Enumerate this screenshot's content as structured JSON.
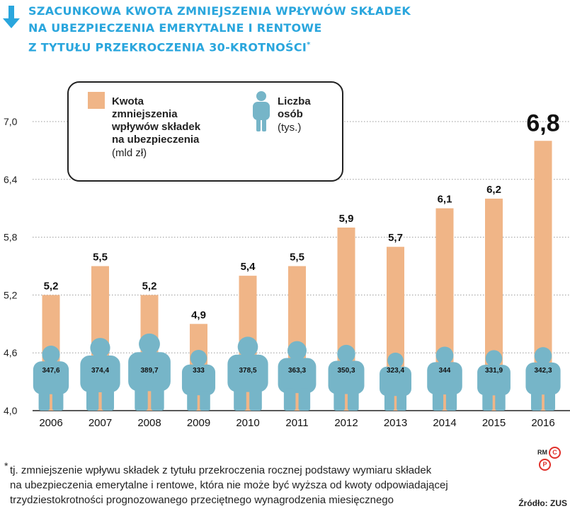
{
  "title": {
    "lines": [
      "SZACUNKOWA KWOTA ZMNIEJSZENIA WPŁYWÓW SKŁADEK",
      "NA UBEZPIECZENIA EMERYTALNE I RENTOWE",
      "Z TYTUŁU PRZEKROCZENIA 30-KROTNOŚCI"
    ],
    "marker": "*"
  },
  "legend": {
    "amount_label_lines": [
      "Kwota",
      "zmniejszenia",
      "wpływów składek",
      "na ubezpieczenia"
    ],
    "amount_unit": "(mld zł)",
    "people_label_lines": [
      "Liczba",
      "osób"
    ],
    "people_unit": "(tys.)"
  },
  "chart_data": {
    "type": "bar",
    "categories": [
      "2006",
      "2007",
      "2008",
      "2009",
      "2010",
      "2011",
      "2012",
      "2013",
      "2014",
      "2015",
      "2016"
    ],
    "series": [
      {
        "name": "Kwota zmniejszenia wpływów składek na ubezpieczenia (mld zł)",
        "values": [
          5.2,
          5.5,
          5.2,
          4.9,
          5.4,
          5.5,
          5.9,
          5.7,
          6.1,
          6.2,
          6.8
        ],
        "labels": [
          "5,2",
          "5,5",
          "5,2",
          "4,9",
          "5,4",
          "5,5",
          "5,9",
          "5,7",
          "6,1",
          "6,2",
          "6,8"
        ]
      },
      {
        "name": "Liczba osób (tys.)",
        "values": [
          347.6,
          374.4,
          389.7,
          333,
          378.5,
          363.3,
          350.3,
          323.4,
          344,
          331.9,
          342.3
        ],
        "labels": [
          "347,6",
          "374,4",
          "389,7",
          "333",
          "378,5",
          "363,3",
          "350,3",
          "323,4",
          "344",
          "331,9",
          "342,3"
        ]
      }
    ],
    "y_ticks": [
      {
        "value": 4.0,
        "label": "4,0"
      },
      {
        "value": 4.6,
        "label": "4,6"
      },
      {
        "value": 5.2,
        "label": "5,2"
      },
      {
        "value": 5.8,
        "label": "5,8"
      },
      {
        "value": 6.4,
        "label": "6,4"
      },
      {
        "value": 7.0,
        "label": "7,0"
      }
    ],
    "ylim": [
      4.0,
      7.3
    ],
    "grid": true,
    "highlight_last": true,
    "colors": {
      "bar": "#f0b587",
      "person": "#76b5c8",
      "grid": "#999999",
      "title": "#2aa6dd"
    }
  },
  "footnote": {
    "marker": "*",
    "lines": [
      "tj. zmniejszenie wpływu składek z tytułu przekroczenia rocznej podstawy wymiaru składek",
      "na ubezpieczenia emerytalne i rentowe, która nie może być wyższa od kwoty odpowiadającej",
      "trzydziestokrotności prognozowanego przeciętnego wynagrodzenia miesięcznego"
    ]
  },
  "source": "Źródło: ZUS",
  "logo": {
    "text": "RM",
    "letters": [
      "C",
      "P"
    ]
  }
}
